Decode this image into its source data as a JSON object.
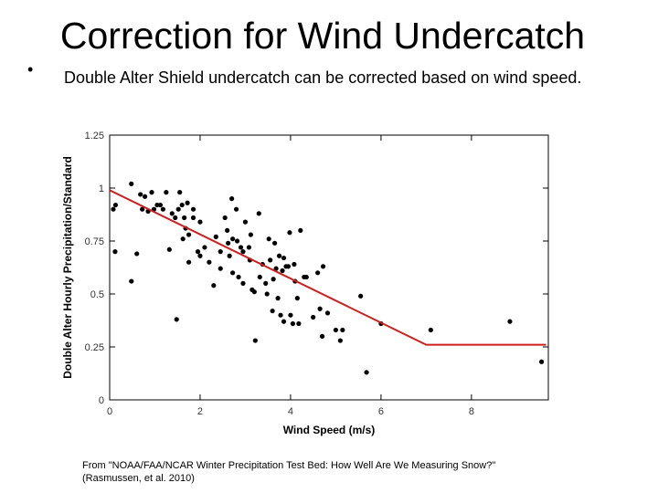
{
  "slide": {
    "title": "Correction for Wind Undercatch",
    "bullet_marker": "•",
    "bullet_text": "Double Alter Shield undercatch can be corrected based on wind speed.",
    "caption_line1": "From \"NOAA/FAA/NCAR Winter Precipitation Test Bed: How Well Are We Measuring Snow?\"",
    "caption_line2": "(Rasmussen, et al. 2010)"
  },
  "chart_data": {
    "type": "scatter",
    "xlabel": "Wind Speed (m/s)",
    "ylabel": "Double Alter Hourly Precipitation/Standard",
    "xlim": [
      0,
      9.7
    ],
    "ylim": [
      0,
      1.25
    ],
    "x_ticks": [
      0,
      2,
      4,
      6,
      8
    ],
    "y_ticks": [
      0,
      0.25,
      0.5,
      0.75,
      1,
      1.25
    ],
    "x_tick_labels": [
      "0",
      "2",
      "4",
      "6",
      "8"
    ],
    "y_tick_labels": [
      "0",
      "0.25",
      "0.5",
      "0.75",
      "1",
      "1.25"
    ],
    "grid": false,
    "point_color": "#000000",
    "line_color": "#cc1f1f",
    "fit_line": [
      [
        0,
        0.99
      ],
      [
        7.0,
        0.26
      ],
      [
        9.65,
        0.26
      ]
    ],
    "points": [
      [
        0.08,
        0.9
      ],
      [
        0.13,
        0.92
      ],
      [
        0.12,
        0.7
      ],
      [
        0.48,
        1.02
      ],
      [
        0.48,
        0.56
      ],
      [
        0.6,
        0.69
      ],
      [
        0.68,
        0.97
      ],
      [
        0.78,
        0.96
      ],
      [
        0.72,
        0.9
      ],
      [
        0.85,
        0.89
      ],
      [
        0.93,
        0.98
      ],
      [
        0.98,
        0.9
      ],
      [
        1.05,
        0.92
      ],
      [
        1.12,
        0.92
      ],
      [
        1.18,
        0.9
      ],
      [
        1.25,
        0.98
      ],
      [
        1.32,
        0.71
      ],
      [
        1.38,
        0.88
      ],
      [
        1.45,
        0.86
      ],
      [
        1.48,
        0.38
      ],
      [
        1.52,
        0.9
      ],
      [
        1.55,
        0.98
      ],
      [
        1.6,
        0.92
      ],
      [
        1.62,
        0.76
      ],
      [
        1.65,
        0.86
      ],
      [
        1.68,
        0.81
      ],
      [
        1.72,
        0.93
      ],
      [
        1.75,
        0.78
      ],
      [
        1.75,
        0.65
      ],
      [
        1.85,
        0.9
      ],
      [
        1.85,
        0.86
      ],
      [
        1.95,
        0.7
      ],
      [
        2.0,
        0.84
      ],
      [
        2.0,
        0.68
      ],
      [
        2.1,
        0.72
      ],
      [
        2.2,
        0.65
      ],
      [
        2.3,
        0.54
      ],
      [
        2.35,
        0.77
      ],
      [
        2.45,
        0.7
      ],
      [
        2.45,
        0.62
      ],
      [
        2.55,
        0.86
      ],
      [
        2.6,
        0.8
      ],
      [
        2.62,
        0.74
      ],
      [
        2.65,
        0.68
      ],
      [
        2.7,
        0.95
      ],
      [
        2.72,
        0.76
      ],
      [
        2.72,
        0.6
      ],
      [
        2.8,
        0.9
      ],
      [
        2.82,
        0.75
      ],
      [
        2.85,
        0.58
      ],
      [
        2.9,
        0.72
      ],
      [
        2.95,
        0.55
      ],
      [
        2.95,
        0.7
      ],
      [
        3.0,
        0.84
      ],
      [
        3.08,
        0.72
      ],
      [
        3.1,
        0.66
      ],
      [
        3.12,
        0.78
      ],
      [
        3.15,
        0.52
      ],
      [
        3.2,
        0.51
      ],
      [
        3.22,
        0.28
      ],
      [
        3.3,
        0.88
      ],
      [
        3.32,
        0.58
      ],
      [
        3.38,
        0.64
      ],
      [
        3.45,
        0.55
      ],
      [
        3.48,
        0.5
      ],
      [
        3.52,
        0.76
      ],
      [
        3.55,
        0.66
      ],
      [
        3.6,
        0.42
      ],
      [
        3.62,
        0.57
      ],
      [
        3.65,
        0.74
      ],
      [
        3.68,
        0.62
      ],
      [
        3.72,
        0.48
      ],
      [
        3.75,
        0.68
      ],
      [
        3.78,
        0.4
      ],
      [
        3.82,
        0.61
      ],
      [
        3.85,
        0.67
      ],
      [
        3.85,
        0.37
      ],
      [
        3.9,
        0.63
      ],
      [
        3.95,
        0.63
      ],
      [
        3.98,
        0.79
      ],
      [
        4.0,
        0.4
      ],
      [
        4.05,
        0.36
      ],
      [
        4.08,
        0.64
      ],
      [
        4.1,
        0.56
      ],
      [
        4.15,
        0.48
      ],
      [
        4.18,
        0.36
      ],
      [
        4.22,
        0.8
      ],
      [
        4.3,
        0.58
      ],
      [
        4.35,
        0.58
      ],
      [
        4.5,
        0.39
      ],
      [
        4.6,
        0.6
      ],
      [
        4.65,
        0.43
      ],
      [
        4.7,
        0.3
      ],
      [
        4.72,
        0.63
      ],
      [
        4.82,
        0.41
      ],
      [
        5.0,
        0.33
      ],
      [
        5.1,
        0.28
      ],
      [
        5.15,
        0.33
      ],
      [
        5.55,
        0.49
      ],
      [
        5.68,
        0.13
      ],
      [
        6.0,
        0.36
      ],
      [
        7.1,
        0.33
      ],
      [
        8.85,
        0.37
      ],
      [
        9.55,
        0.18
      ]
    ]
  }
}
